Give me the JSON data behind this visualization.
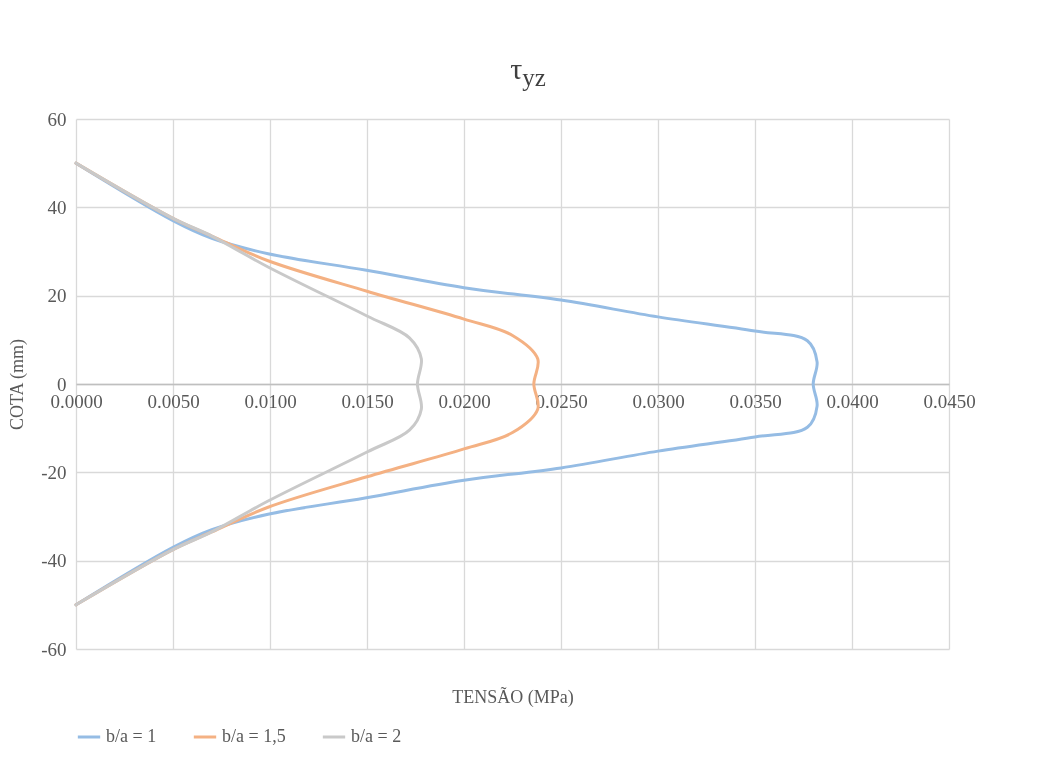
{
  "chart_data": {
    "type": "line",
    "title": "τ$_{yz}$",
    "xlabel": "TENSÃO (MPa)",
    "ylabel": "COTA (mm)",
    "xlim": [
      0,
      0.045
    ],
    "ylim": [
      -60,
      60
    ],
    "xticks": [
      {
        "value": 0,
        "label": "0.0000"
      },
      {
        "value": 0.005,
        "label": "0.0050"
      },
      {
        "value": 0.01,
        "label": "0.0100"
      },
      {
        "value": 0.015,
        "label": "0.0150"
      },
      {
        "value": 0.02,
        "label": "0.0200"
      },
      {
        "value": 0.025,
        "label": "0.0250"
      },
      {
        "value": 0.03,
        "label": "0.0300"
      },
      {
        "value": 0.035,
        "label": "0.0350"
      },
      {
        "value": 0.04,
        "label": "0.0400"
      },
      {
        "value": 0.045,
        "label": "0.0450"
      }
    ],
    "yticks": [
      -60,
      -40,
      -20,
      0,
      20,
      40,
      60
    ],
    "grid": true,
    "legend": "bottom",
    "line_style": "solid",
    "marker": "none",
    "series": [
      {
        "name": "b/a = 1",
        "color": "#95bce4",
        "x": [
          0,
          0.005,
          0.007,
          0.0099,
          0.0149,
          0.02,
          0.025,
          0.03,
          0.035,
          0.0377,
          0.0382,
          0.038,
          0.0382,
          0.0377,
          0.035,
          0.03,
          0.025,
          0.02,
          0.0149,
          0.0099,
          0.007,
          0.005,
          0
        ],
        "values": [
          50,
          37,
          33,
          29.5,
          25.8,
          21.8,
          19,
          15.2,
          12,
          9.8,
          5,
          0,
          -5,
          -9.8,
          -12,
          -15.2,
          -19,
          -21.8,
          -25.8,
          -29.5,
          -33,
          -37,
          -50
        ]
      },
      {
        "name": "b/a = 1,5",
        "color": "#f4b183",
        "x": [
          0,
          0.005,
          0.007,
          0.0099,
          0.015,
          0.02,
          0.0225,
          0.0238,
          0.0236,
          0.0238,
          0.0225,
          0.02,
          0.015,
          0.0099,
          0.007,
          0.005,
          0
        ],
        "values": [
          50,
          37.5,
          33.5,
          27.9,
          21,
          14.7,
          11,
          5.7,
          0,
          -5.7,
          -11,
          -14.7,
          -21,
          -27.9,
          -33.5,
          -37.5,
          -50
        ]
      },
      {
        "name": "b/a = 2",
        "color": "#c9c9c9",
        "x": [
          0,
          0.005,
          0.007,
          0.0099,
          0.015,
          0.0172,
          0.0178,
          0.0176,
          0.0178,
          0.0172,
          0.015,
          0.0099,
          0.007,
          0.005,
          0
        ],
        "values": [
          50,
          37.5,
          33.5,
          26.5,
          15.4,
          10.4,
          5.7,
          0,
          -5.7,
          -10.4,
          -15.4,
          -26.5,
          -33.5,
          -37.5,
          -50
        ]
      }
    ]
  }
}
